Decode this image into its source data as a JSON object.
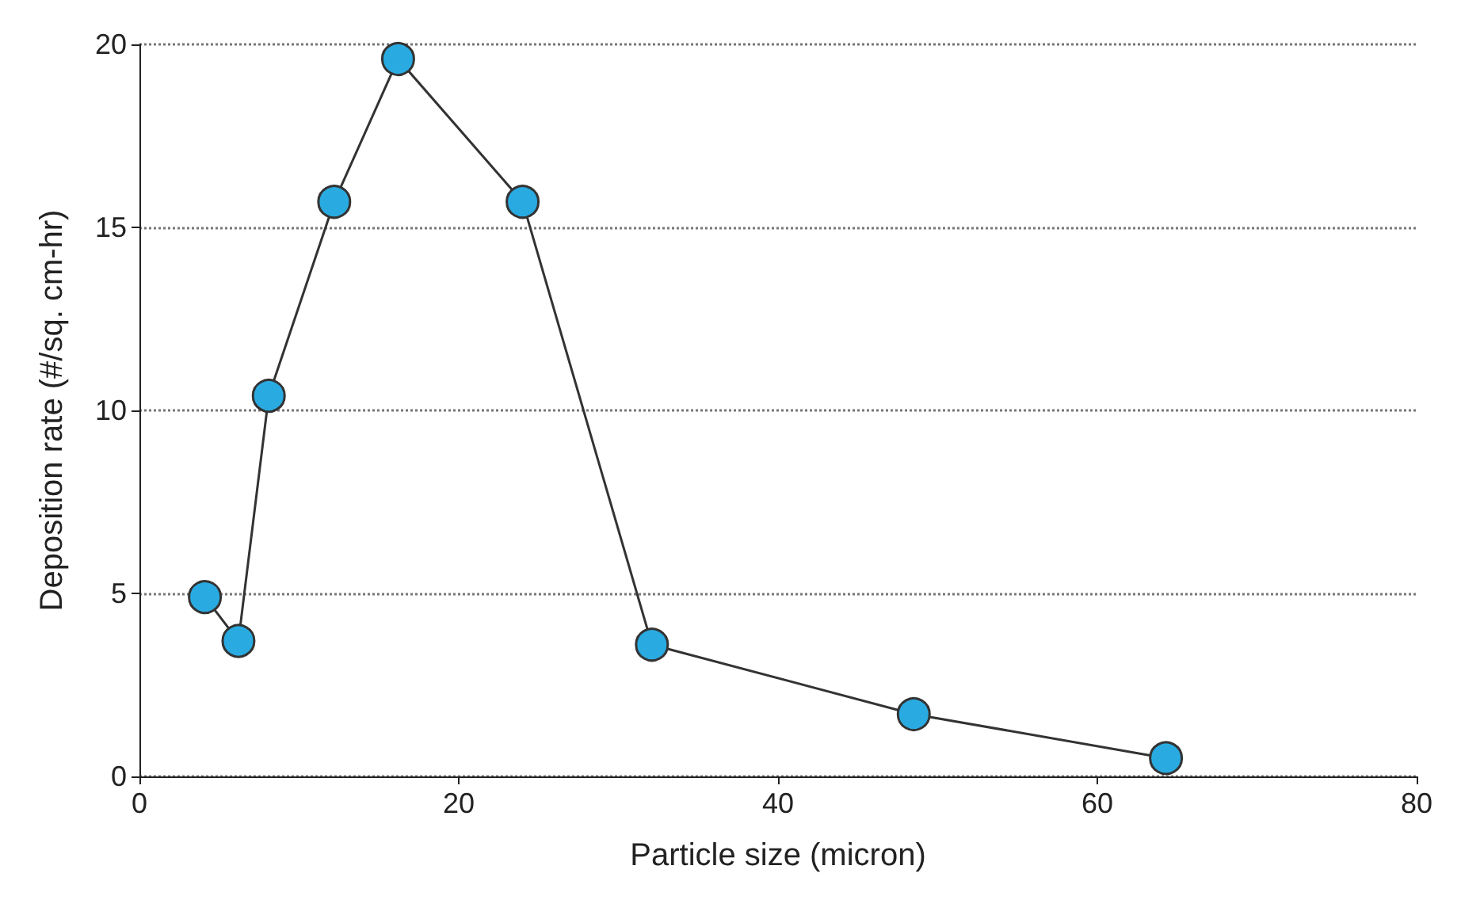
{
  "chart_data": {
    "type": "line",
    "xlabel": "Particle size (micron)",
    "ylabel": "Deposition rate (#/sq. cm-hr)",
    "x": [
      4.1,
      6.2,
      8.1,
      12.2,
      16.2,
      24.0,
      32.1,
      48.5,
      64.3
    ],
    "series": [
      {
        "color": "#29abe2",
        "values": [
          4.9,
          3.7,
          10.4,
          15.7,
          19.6,
          15.7,
          3.6,
          1.7,
          0.5
        ]
      }
    ],
    "xlim": [
      0,
      80
    ],
    "xticks": [
      0,
      20,
      40,
      60,
      80
    ],
    "ylim": [
      0,
      20
    ],
    "yticks": [
      0,
      5,
      10,
      15,
      20
    ],
    "grid": "y",
    "marker": "circle",
    "line_style": "solid"
  }
}
